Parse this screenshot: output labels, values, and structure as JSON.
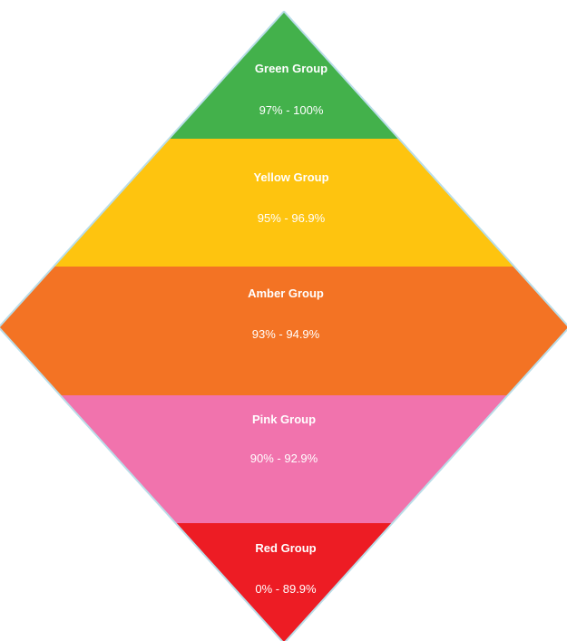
{
  "bands": [
    {
      "title": "Green Group",
      "range": "97% - 100%",
      "color": "#43b14b"
    },
    {
      "title": "Yellow Group",
      "range": "95% - 96.9%",
      "color": "#fec40f"
    },
    {
      "title": "Amber Group",
      "range": "93% - 94.9%",
      "color": "#f37324"
    },
    {
      "title": "Pink Group",
      "range": "90% - 92.9%",
      "color": "#f173ad"
    },
    {
      "title": "Red Group",
      "range": "0% - 89.9%",
      "color": "#ed1c24"
    }
  ],
  "outline_color": "#b9dde8"
}
